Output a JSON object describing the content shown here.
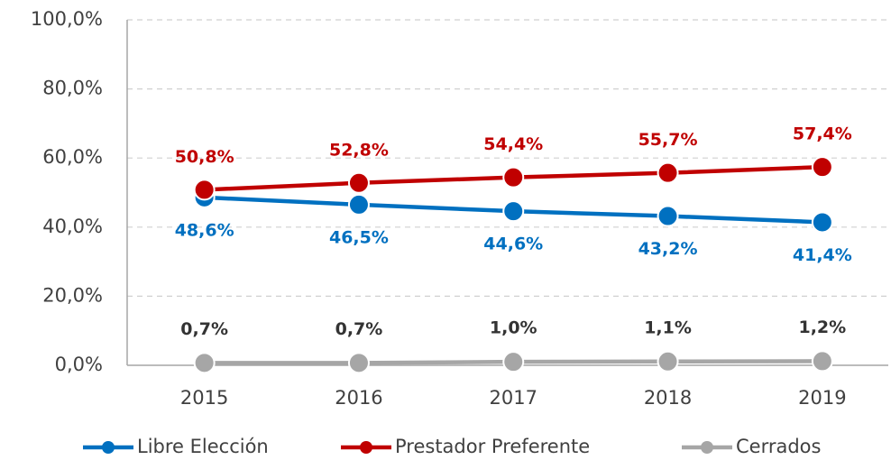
{
  "chart_data": {
    "type": "line",
    "categories": [
      "2015",
      "2016",
      "2017",
      "2018",
      "2019"
    ],
    "series": [
      {
        "name": "Libre Elección",
        "color": "#0070c0",
        "values": [
          48.6,
          46.5,
          44.6,
          43.2,
          41.4
        ],
        "value_labels": [
          "48,6%",
          "46,5%",
          "44,6%",
          "43,2%",
          "41,4%"
        ]
      },
      {
        "name": "Prestador Preferente",
        "color": "#c00000",
        "values": [
          50.8,
          52.8,
          54.4,
          55.7,
          57.4
        ],
        "value_labels": [
          "50,8%",
          "52,8%",
          "54,4%",
          "55,7%",
          "57,4%"
        ]
      },
      {
        "name": "Cerrados",
        "color": "#a6a6a6",
        "values": [
          0.7,
          0.7,
          1.0,
          1.1,
          1.2
        ],
        "value_labels": [
          "0,7%",
          "0,7%",
          "1,0%",
          "1,1%",
          "1,2%"
        ]
      }
    ],
    "ylim": [
      0,
      100
    ],
    "yticks": [
      {
        "value": 0,
        "label": "0,0%"
      },
      {
        "value": 20,
        "label": "20,0%"
      },
      {
        "value": 40,
        "label": "40,0%"
      },
      {
        "value": 60,
        "label": "60,0%"
      },
      {
        "value": 80,
        "label": "80,0%"
      },
      {
        "value": 100,
        "label": "100,0%"
      }
    ],
    "grid": true,
    "legend": "bottom"
  }
}
